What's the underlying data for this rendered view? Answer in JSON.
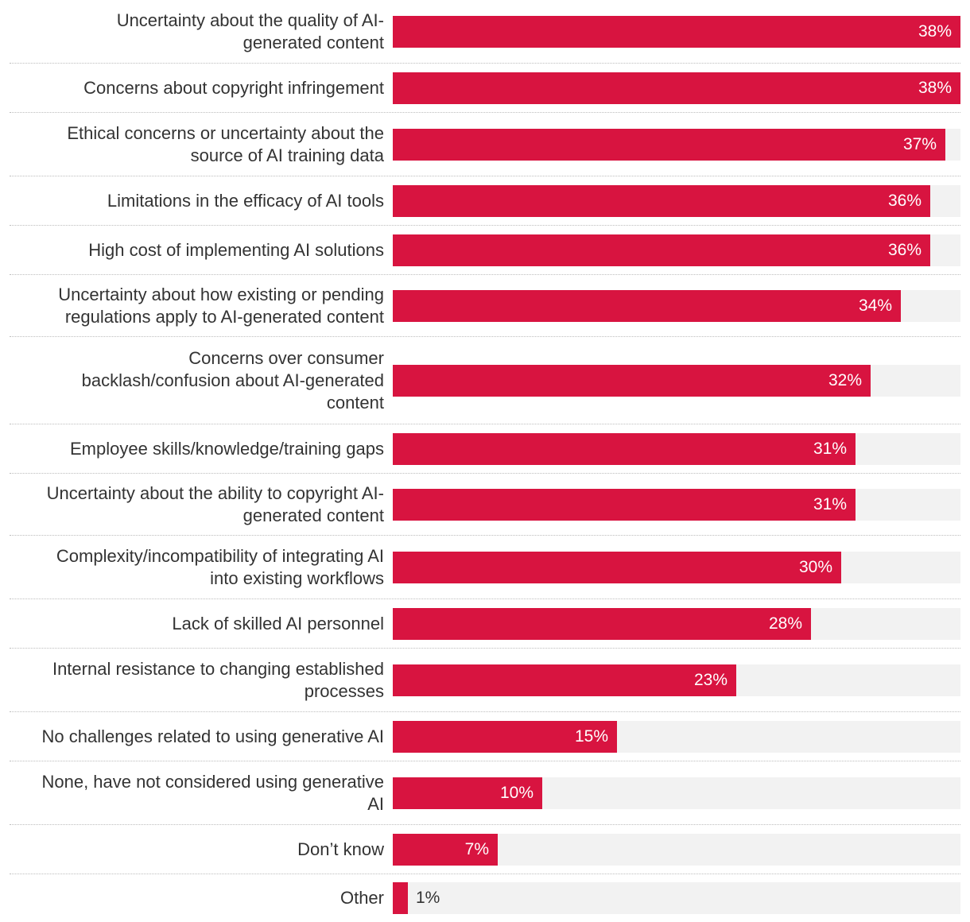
{
  "chart_data": {
    "type": "bar",
    "orientation": "horizontal",
    "title": "",
    "xlabel": "",
    "ylabel": "",
    "xlim": [
      0,
      38
    ],
    "unit": "%",
    "bar_color": "#d81440",
    "track_color": "#f2f2f2",
    "categories": [
      "Uncertainty about the quality of AI-generated content",
      "Concerns about copyright infringement",
      "Ethical concerns or uncertainty about the source of AI training data",
      "Limitations in the efficacy of AI tools",
      "High cost of implementing AI solutions",
      "Uncertainty about how existing or pending regulations apply to AI-generated content",
      "Concerns over consumer backlash/confusion about AI-generated content",
      "Employee skills/knowledge/training gaps",
      "Uncertainty about the ability to copyright AI-generated content",
      "Complexity/incompatibility of integrating AI into existing workflows",
      "Lack of skilled AI personnel",
      "Internal resistance to changing established processes",
      "No challenges related to using generative AI",
      "None, have not considered using generative AI",
      "Don’t know",
      "Other"
    ],
    "category_lines": [
      [
        "Uncertainty about the quality of AI-",
        "generated content"
      ],
      [
        "Concerns about copyright infringement"
      ],
      [
        "Ethical concerns or uncertainty about the",
        "source of AI training data"
      ],
      [
        "Limitations in the efficacy of AI tools"
      ],
      [
        "High cost of implementing AI solutions"
      ],
      [
        "Uncertainty about how existing or pending",
        "regulations apply to AI-generated content"
      ],
      [
        "Concerns over consumer",
        "backlash/confusion about AI-generated",
        "content"
      ],
      [
        "Employee skills/knowledge/training gaps"
      ],
      [
        "Uncertainty about the ability to copyright AI-",
        "generated content"
      ],
      [
        "Complexity/incompatibility of integrating AI",
        "into existing workflows"
      ],
      [
        "Lack of skilled AI personnel"
      ],
      [
        "Internal resistance to changing established",
        "processes"
      ],
      [
        "No challenges related to using generative AI"
      ],
      [
        "None, have not considered using generative",
        "AI"
      ],
      [
        "Don’t know"
      ],
      [
        "Other"
      ]
    ],
    "values": [
      38,
      38,
      37,
      36,
      36,
      34,
      32,
      31,
      31,
      30,
      28,
      23,
      15,
      10,
      7,
      1
    ],
    "value_labels": [
      "38%",
      "38%",
      "37%",
      "36%",
      "36%",
      "34%",
      "32%",
      "31%",
      "31%",
      "30%",
      "28%",
      "23%",
      "15%",
      "10%",
      "7%",
      "1%"
    ]
  }
}
